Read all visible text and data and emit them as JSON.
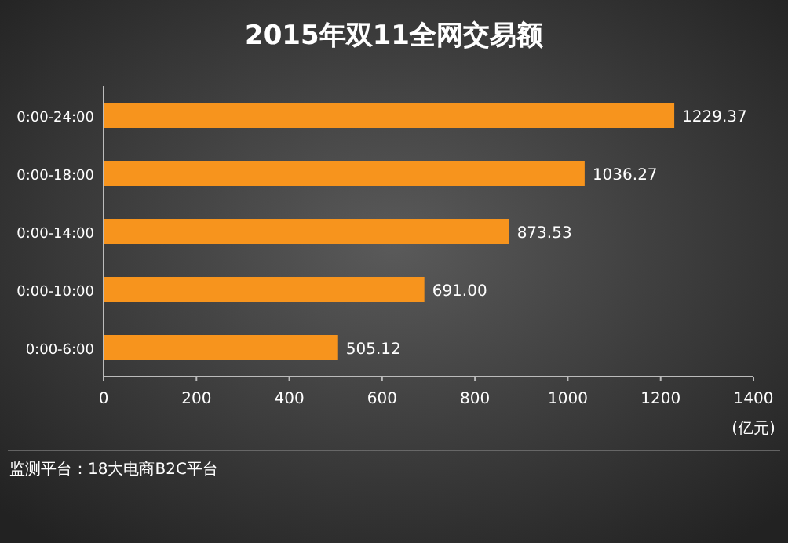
{
  "chart_data": {
    "type": "bar",
    "orientation": "horizontal",
    "title": "2015年双11全网交易额",
    "categories": [
      "0:00-24:00",
      "0:00-18:00",
      "0:00-14:00",
      "0:00-10:00",
      "0:00-6:00"
    ],
    "values": [
      1229.37,
      1036.27,
      873.53,
      691.0,
      505.12
    ],
    "value_labels": [
      "1229.37",
      "1036.27",
      "873.53",
      "691.00",
      "505.12"
    ],
    "color": "#f7941d",
    "xlim": [
      0,
      1400
    ],
    "xticks": [
      0,
      200,
      400,
      600,
      800,
      1000,
      1200,
      1400
    ],
    "xlabel": "(亿元)",
    "annotations": [
      "监测平台：18大电商B2C平台"
    ]
  }
}
